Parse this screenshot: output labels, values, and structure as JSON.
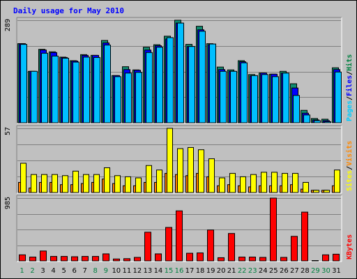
{
  "chart_data": {
    "type": "bar",
    "title": "Daily usage for May 2010",
    "categories": [
      "1",
      "2",
      "3",
      "4",
      "5",
      "6",
      "7",
      "8",
      "9",
      "10",
      "11",
      "12",
      "13",
      "14",
      "15",
      "16",
      "17",
      "18",
      "19",
      "20",
      "21",
      "22",
      "23",
      "24",
      "25",
      "26",
      "27",
      "28",
      "29",
      "30",
      "31"
    ],
    "weekend_days": [
      "1",
      "2",
      "8",
      "9",
      "15",
      "16",
      "22",
      "23",
      "29",
      "30"
    ],
    "panels": [
      {
        "id": "top",
        "max_label": "289",
        "ylim": [
          0,
          289
        ],
        "grid": true,
        "legend": [
          {
            "text": "Pages",
            "color": "#00ccff"
          },
          {
            "text": "/",
            "color": "#000000"
          },
          {
            "text": "Files",
            "color": "#0000ff"
          },
          {
            "text": "/",
            "color": "#000000"
          },
          {
            "text": "Hits",
            "color": "#008040"
          }
        ],
        "series": [
          {
            "name": "Hits",
            "color": "#0f8b6f",
            "values": [
              223,
              145,
              207,
              200,
              185,
              175,
              192,
              190,
              232,
              133,
              158,
              149,
              213,
              220,
              244,
              289,
              221,
              272,
              223,
              157,
              149,
              175,
              136,
              140,
              137,
              145,
              110,
              35,
              12,
              10,
              155
            ]
          },
          {
            "name": "Files",
            "color": "#0000ff",
            "values": [
              223,
              145,
              205,
              198,
              184,
              174,
              190,
              190,
              225,
              133,
              150,
              148,
              205,
              217,
              236,
              281,
              215,
              262,
              220,
              150,
              145,
              172,
              132,
              140,
              137,
              140,
              98,
              27,
              8,
              6,
              150
            ]
          },
          {
            "name": "Pages",
            "color": "#00bfff",
            "values": [
              221,
              145,
              196,
              188,
              182,
              171,
              185,
              184,
              219,
              130,
              140,
              142,
              198,
              213,
              240,
              281,
              215,
              258,
              222,
              145,
              145,
              169,
              133,
              136,
              130,
              140,
              77,
              22,
              6,
              3,
              143
            ]
          }
        ]
      },
      {
        "id": "middle",
        "max_label": "57",
        "ylim": [
          0,
          57
        ],
        "grid": true,
        "legend": [
          {
            "text": "Sites",
            "color": "#ffff00"
          },
          {
            "text": "/",
            "color": "#000000"
          },
          {
            "text": "Visits",
            "color": "#ff8800"
          }
        ],
        "series": [
          {
            "name": "Visits",
            "color": "#ff8000",
            "values": [
              9,
              4,
              9,
              9,
              7,
              7,
              8,
              9,
              12,
              8,
              6,
              6,
              9,
              9,
              17,
              16,
              15,
              17,
              14,
              6,
              7,
              6,
              5,
              6,
              6,
              6,
              7,
              3,
              2,
              2,
              6
            ]
          },
          {
            "name": "Sites",
            "color": "#ffff00",
            "values": [
              26,
              16,
              16,
              16,
              15,
              19,
              16,
              16,
              22,
              15,
              14,
              13,
              24,
              20,
              57,
              39,
              40,
              38,
              30,
              13,
              17,
              14,
              16,
              18,
              18,
              17,
              17,
              9,
              2,
              2,
              20
            ]
          }
        ]
      },
      {
        "id": "bottom",
        "max_label": "985",
        "ylim": [
          0,
          985
        ],
        "grid": true,
        "legend": [
          {
            "text": "KBytes",
            "color": "#ff0000"
          }
        ],
        "series": [
          {
            "name": "KBytes",
            "color": "#ff0000",
            "values": [
              95,
              60,
              155,
              70,
              70,
              65,
              70,
              70,
              110,
              30,
              35,
              55,
              450,
              110,
              525,
              785,
              120,
              125,
              485,
              50,
              430,
              60,
              60,
              55,
              985,
              55,
              385,
              765,
              5,
              95,
              105
            ]
          }
        ]
      }
    ]
  }
}
